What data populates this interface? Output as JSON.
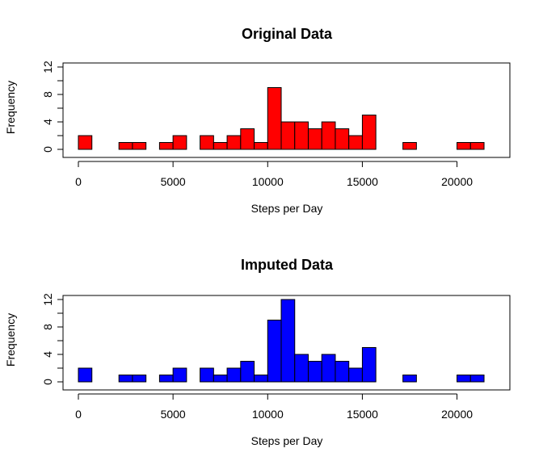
{
  "chart_data": [
    {
      "type": "bar",
      "title": "Original Data",
      "xlabel": "Steps per Day",
      "ylabel": "Frequency",
      "xlim": [
        0,
        22000
      ],
      "ylim": [
        0,
        12
      ],
      "bin_width": 714.29,
      "xticks": [
        "0",
        "5000",
        "10000",
        "15000",
        "20000"
      ],
      "yticks": [
        "0",
        "4",
        "8",
        "12"
      ],
      "fill_color": "#ff0000",
      "values": [
        2,
        0,
        0,
        1,
        1,
        0,
        1,
        2,
        0,
        2,
        1,
        2,
        3,
        1,
        9,
        4,
        4,
        3,
        4,
        3,
        2,
        5,
        0,
        0,
        1,
        0,
        0,
        0,
        1,
        1
      ]
    },
    {
      "type": "bar",
      "title": "Imputed Data",
      "xlabel": "Steps per Day",
      "ylabel": "Frequency",
      "xlim": [
        0,
        22000
      ],
      "ylim": [
        0,
        12
      ],
      "bin_width": 714.29,
      "xticks": [
        "0",
        "5000",
        "10000",
        "15000",
        "20000"
      ],
      "yticks": [
        "0",
        "4",
        "8",
        "12"
      ],
      "fill_color": "#0000ff",
      "values": [
        2,
        0,
        0,
        1,
        1,
        0,
        1,
        2,
        0,
        2,
        1,
        2,
        3,
        1,
        9,
        12,
        4,
        3,
        4,
        3,
        2,
        5,
        0,
        0,
        1,
        0,
        0,
        0,
        1,
        1
      ]
    }
  ]
}
